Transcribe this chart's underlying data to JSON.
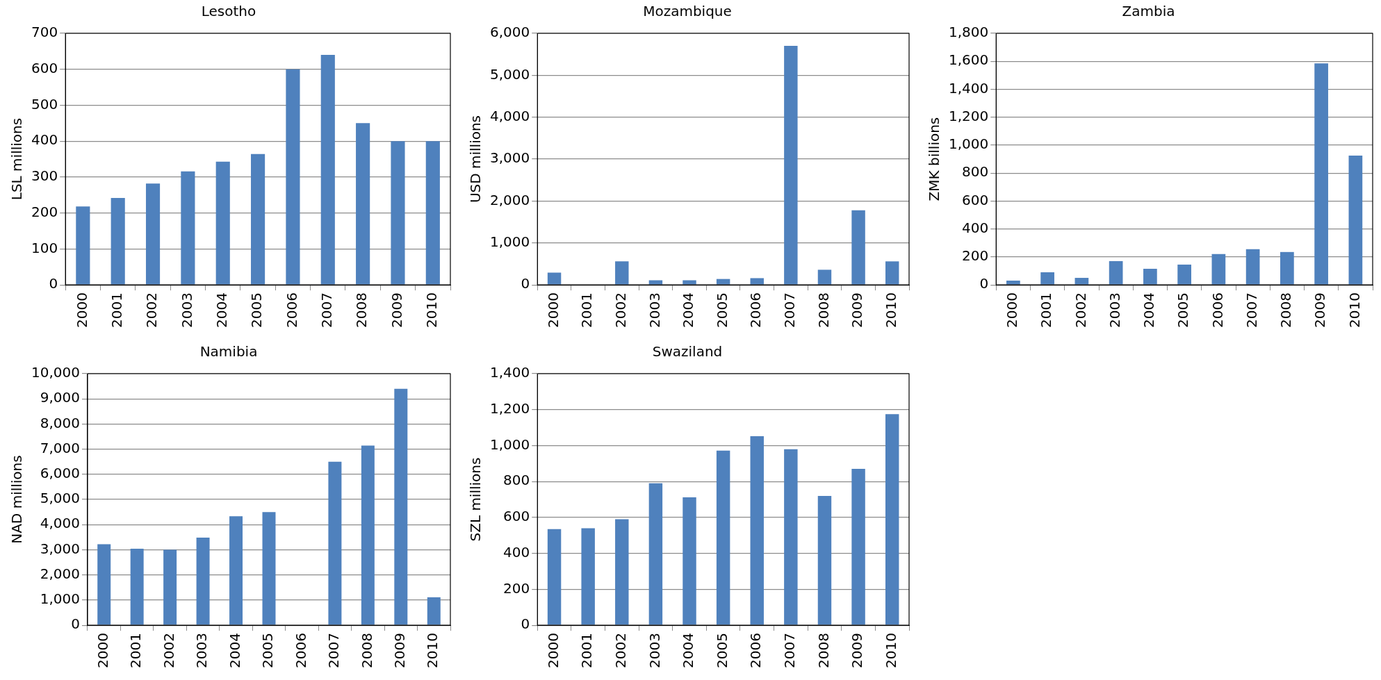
{
  "chart_data": [
    {
      "type": "bar",
      "title": "Lesotho",
      "ylabel": "LSL millions",
      "categories": [
        "2000",
        "2001",
        "2002",
        "2003",
        "2004",
        "2005",
        "2006",
        "2007",
        "2008",
        "2009",
        "2010"
      ],
      "values": [
        218,
        242,
        282,
        316,
        343,
        364,
        600,
        640,
        450,
        400,
        400
      ],
      "color": "#4f81bd",
      "ylim": [
        0,
        700
      ],
      "yticks": [
        0,
        100,
        200,
        300,
        400,
        500,
        600,
        700
      ],
      "grid": "y",
      "legend": false
    },
    {
      "type": "bar",
      "title": "Mozambique",
      "ylabel": "USD millions",
      "categories": [
        "2000",
        "2001",
        "2002",
        "2003",
        "2004",
        "2005",
        "2006",
        "2007",
        "2008",
        "2009",
        "2010"
      ],
      "values": [
        290,
        null,
        560,
        110,
        110,
        140,
        160,
        5700,
        360,
        1780,
        560
      ],
      "color": "#4f81bd",
      "ylim": [
        0,
        6000
      ],
      "yticks": [
        0,
        {
          "value": 1000,
          "label": "1,000"
        },
        {
          "value": 2000,
          "label": "2,000"
        },
        {
          "value": 3000,
          "label": "3,000"
        },
        {
          "value": 4000,
          "label": "4,000"
        },
        {
          "value": 5000,
          "label": "5,000"
        },
        {
          "value": 6000,
          "label": "6,000"
        }
      ],
      "grid": "y",
      "legend": false
    },
    {
      "type": "bar",
      "title": "Zambia",
      "ylabel": "ZMK billions",
      "categories": [
        "2000",
        "2001",
        "2002",
        "2003",
        "2004",
        "2005",
        "2006",
        "2007",
        "2008",
        "2009",
        "2010"
      ],
      "values": [
        30,
        90,
        50,
        170,
        115,
        145,
        220,
        255,
        235,
        1585,
        925
      ],
      "color": "#4f81bd",
      "ylim": [
        0,
        1800
      ],
      "yticks": [
        0,
        200,
        400,
        600,
        800,
        {
          "value": 1000,
          "label": "1,000"
        },
        {
          "value": 1200,
          "label": "1,200"
        },
        {
          "value": 1400,
          "label": "1,400"
        },
        {
          "value": 1600,
          "label": "1,600"
        },
        {
          "value": 1800,
          "label": "1,800"
        }
      ],
      "grid": "y",
      "legend": false
    },
    {
      "type": "bar",
      "title": "Namibia",
      "ylabel": "NAD millions",
      "categories": [
        "2000",
        "2001",
        "2002",
        "2003",
        "2004",
        "2005",
        "2006",
        "2007",
        "2008",
        "2009",
        "2010"
      ],
      "values": [
        3220,
        3040,
        3000,
        3480,
        4330,
        4500,
        null,
        6500,
        7140,
        9400,
        1110
      ],
      "color": "#4f81bd",
      "ylim": [
        0,
        10000
      ],
      "yticks": [
        0,
        {
          "value": 1000,
          "label": "1,000"
        },
        {
          "value": 2000,
          "label": "2,000"
        },
        {
          "value": 3000,
          "label": "3,000"
        },
        {
          "value": 4000,
          "label": "4,000"
        },
        {
          "value": 5000,
          "label": "5,000"
        },
        {
          "value": 6000,
          "label": "6,000"
        },
        {
          "value": 7000,
          "label": "7,000"
        },
        {
          "value": 8000,
          "label": "8,000"
        },
        {
          "value": 9000,
          "label": "9,000"
        },
        {
          "value": 10000,
          "label": "10,000"
        }
      ],
      "grid": "y",
      "legend": false
    },
    {
      "type": "bar",
      "title": "Swaziland",
      "ylabel": "SZL millions",
      "categories": [
        "2000",
        "2001",
        "2002",
        "2003",
        "2004",
        "2005",
        "2006",
        "2007",
        "2008",
        "2009",
        "2010"
      ],
      "values": [
        535,
        540,
        590,
        790,
        712,
        972,
        1052,
        980,
        720,
        870,
        1175
      ],
      "color": "#4f81bd",
      "ylim": [
        0,
        1400
      ],
      "yticks": [
        0,
        200,
        400,
        600,
        800,
        {
          "value": 1000,
          "label": "1,000"
        },
        {
          "value": 1200,
          "label": "1,200"
        },
        {
          "value": 1400,
          "label": "1,400"
        }
      ],
      "grid": "y",
      "legend": false
    }
  ]
}
